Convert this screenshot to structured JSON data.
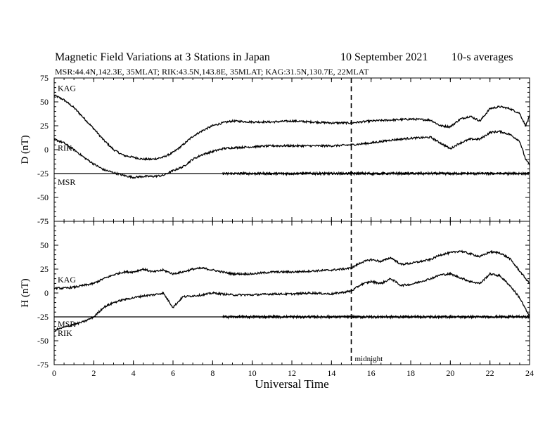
{
  "header": {
    "title": "Magnetic Field Variations at 3 Stations in Japan",
    "date": "10 September 2021",
    "averaging": "10-s averages",
    "stations": "MSR:44.4N,142.3E, 35MLAT;  RIK:43.5N,143.8E, 35MLAT;  KAG:31.5N,130.7E, 22MLAT"
  },
  "chart_data": [
    {
      "type": "line",
      "panel": "D",
      "ylabel": "D (nT)",
      "ylim": [
        -75,
        75
      ],
      "yticks": [
        -75,
        -50,
        -25,
        0,
        25,
        50,
        75
      ],
      "xlim": [
        0,
        24
      ],
      "xticks": [
        0,
        2,
        4,
        6,
        8,
        10,
        12,
        14,
        16,
        18,
        20,
        22,
        24
      ],
      "series": [
        {
          "name": "KAG",
          "color": "#000000",
          "x": [
            0,
            0.5,
            1,
            1.5,
            2,
            2.5,
            3,
            3.5,
            4,
            4.5,
            5,
            5.5,
            6,
            6.5,
            7,
            7.5,
            8,
            8.5,
            9,
            10,
            11,
            12,
            13,
            14,
            15,
            16,
            17,
            18,
            19,
            19.5,
            20,
            20.5,
            21,
            21.5,
            22,
            22.5,
            23,
            23.5,
            23.8,
            24
          ],
          "y": [
            57,
            52,
            44,
            33,
            22,
            10,
            0,
            -6,
            -8,
            -10,
            -10,
            -8,
            -3,
            5,
            14,
            20,
            25,
            28,
            30,
            29,
            29,
            30,
            29,
            28,
            28,
            30,
            31,
            32,
            31,
            25,
            24,
            32,
            35,
            30,
            43,
            45,
            43,
            38,
            25,
            35
          ]
        },
        {
          "name": "RIK",
          "color": "#000000",
          "x": [
            0,
            0.5,
            1,
            1.5,
            2,
            2.5,
            3,
            3.5,
            4,
            4.5,
            5,
            5.5,
            6,
            6.5,
            7,
            7.5,
            8,
            8.5,
            9,
            10,
            11,
            12,
            13,
            14,
            15,
            16,
            17,
            18,
            19,
            19.5,
            20,
            20.5,
            21,
            21.5,
            22,
            22.5,
            23,
            23.5,
            23.8,
            24
          ],
          "y": [
            11,
            7,
            0,
            -8,
            -15,
            -21,
            -24,
            -27,
            -29,
            -28,
            -28,
            -27,
            -22,
            -18,
            -10,
            -5,
            -2,
            1,
            2,
            3,
            4,
            4,
            4,
            4,
            5,
            7,
            10,
            12,
            13,
            7,
            1,
            7,
            11,
            11,
            18,
            19,
            16,
            9,
            -10,
            -16
          ]
        },
        {
          "name": "MSR",
          "color": "#000000",
          "x": [
            0,
            8.5,
            24
          ],
          "y": [
            -25,
            -25,
            -25
          ]
        }
      ],
      "labels": [
        "KAG",
        "RIK",
        "MSR"
      ]
    },
    {
      "type": "line",
      "panel": "H",
      "ylabel": "H (nT)",
      "ylim": [
        -75,
        75
      ],
      "yticks": [
        -75,
        -50,
        -25,
        0,
        25,
        50,
        75
      ],
      "xlim": [
        0,
        24
      ],
      "xticks": [
        0,
        2,
        4,
        6,
        8,
        10,
        12,
        14,
        16,
        18,
        20,
        22,
        24
      ],
      "xlabel": "Universal Time",
      "series": [
        {
          "name": "KAG",
          "color": "#000000",
          "x": [
            0,
            0.5,
            1,
            1.5,
            2,
            2.5,
            3,
            3.5,
            4,
            4.5,
            5,
            5.5,
            6,
            6.5,
            7,
            7.5,
            8,
            9,
            10,
            11,
            12,
            13,
            14,
            15,
            15.5,
            16,
            16.5,
            17,
            17.5,
            18,
            19,
            19.5,
            20,
            20.5,
            21,
            21.5,
            22,
            22.5,
            23,
            23.5,
            24
          ],
          "y": [
            5,
            5,
            6,
            8,
            10,
            15,
            19,
            22,
            22,
            25,
            22,
            24,
            20,
            22,
            25,
            26,
            24,
            20,
            20,
            22,
            22,
            23,
            24,
            26,
            32,
            35,
            33,
            37,
            30,
            31,
            35,
            40,
            42,
            44,
            41,
            38,
            43,
            42,
            36,
            23,
            10
          ]
        },
        {
          "name": "RIK",
          "color": "#000000",
          "x": [
            0,
            0.5,
            1,
            1.5,
            2,
            2.5,
            3,
            3.5,
            4,
            4.5,
            5,
            5.5,
            6,
            6.5,
            7,
            7.5,
            8,
            9,
            10,
            11,
            12,
            13,
            14,
            15,
            15.5,
            16,
            16.5,
            17,
            17.5,
            18,
            19,
            19.5,
            20,
            20.5,
            21,
            21.5,
            22,
            22.5,
            23,
            23.5,
            24
          ],
          "y": [
            -39,
            -36,
            -33,
            -30,
            -25,
            -15,
            -10,
            -7,
            -5,
            -3,
            -2,
            0,
            -15,
            -4,
            -3,
            -2,
            0,
            -2,
            -2,
            -1,
            -1,
            0,
            -1,
            2,
            9,
            12,
            10,
            15,
            8,
            9,
            15,
            19,
            20,
            16,
            12,
            10,
            20,
            18,
            8,
            -5,
            -25
          ]
        },
        {
          "name": "MSR",
          "color": "#000000",
          "x": [
            0,
            8.5,
            24
          ],
          "y": [
            -25,
            -25,
            -25
          ]
        }
      ],
      "labels": [
        "KAG",
        "MSR",
        "RIK"
      ],
      "annotations": [
        "midnight"
      ],
      "midnight_ut": 15
    }
  ]
}
